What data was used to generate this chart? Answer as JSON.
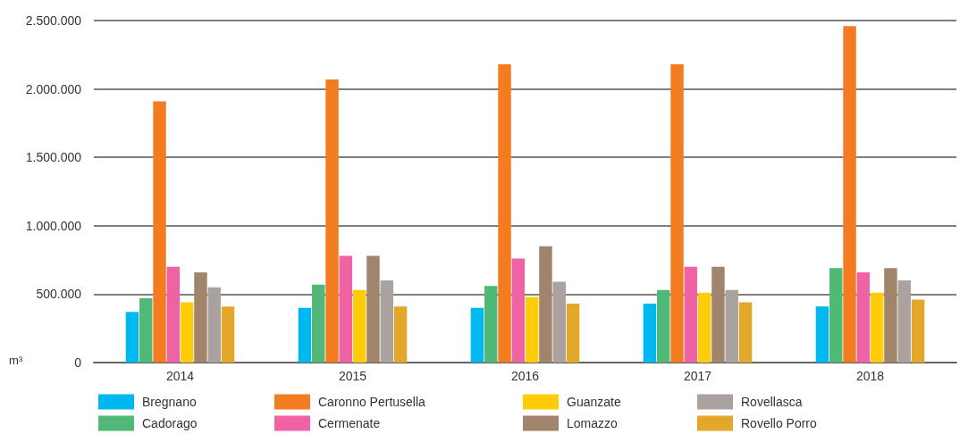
{
  "chart_data": {
    "type": "bar",
    "ylabel": "m³",
    "categories": [
      "2014",
      "2015",
      "2016",
      "2017",
      "2018"
    ],
    "series": [
      {
        "name": "Bregnano",
        "color": "#00b8f0",
        "values": [
          370000,
          400000,
          400000,
          430000,
          410000
        ]
      },
      {
        "name": "Cadorago",
        "color": "#50b978",
        "values": [
          470000,
          570000,
          560000,
          530000,
          690000
        ]
      },
      {
        "name": "Caronno Pertusella",
        "color": "#f47c20",
        "values": [
          1910000,
          2070000,
          2180000,
          2180000,
          2460000
        ]
      },
      {
        "name": "Cermenate",
        "color": "#ef62a3",
        "values": [
          700000,
          780000,
          760000,
          700000,
          660000
        ]
      },
      {
        "name": "Guanzate",
        "color": "#ffcc0a",
        "values": [
          440000,
          530000,
          480000,
          510000,
          510000
        ]
      },
      {
        "name": "Lomazzo",
        "color": "#a0846b",
        "values": [
          660000,
          780000,
          850000,
          700000,
          690000
        ]
      },
      {
        "name": "Rovellasca",
        "color": "#aaa29e",
        "values": [
          550000,
          600000,
          590000,
          530000,
          600000
        ]
      },
      {
        "name": "Rovello Porro",
        "color": "#e3a72a",
        "values": [
          410000,
          410000,
          430000,
          440000,
          460000
        ]
      }
    ],
    "ylim": [
      0,
      2500000
    ],
    "yticks": [
      0,
      {
        "value": 500000,
        "label": "500.000"
      },
      {
        "value": 1000000,
        "label": "1.000.000"
      },
      {
        "value": 1500000,
        "label": "1.500.000"
      },
      {
        "value": 2000000,
        "label": "2.000.000"
      },
      {
        "value": 2500000,
        "label": "2.500.000"
      }
    ],
    "grid": "y",
    "legend": "bottom"
  }
}
